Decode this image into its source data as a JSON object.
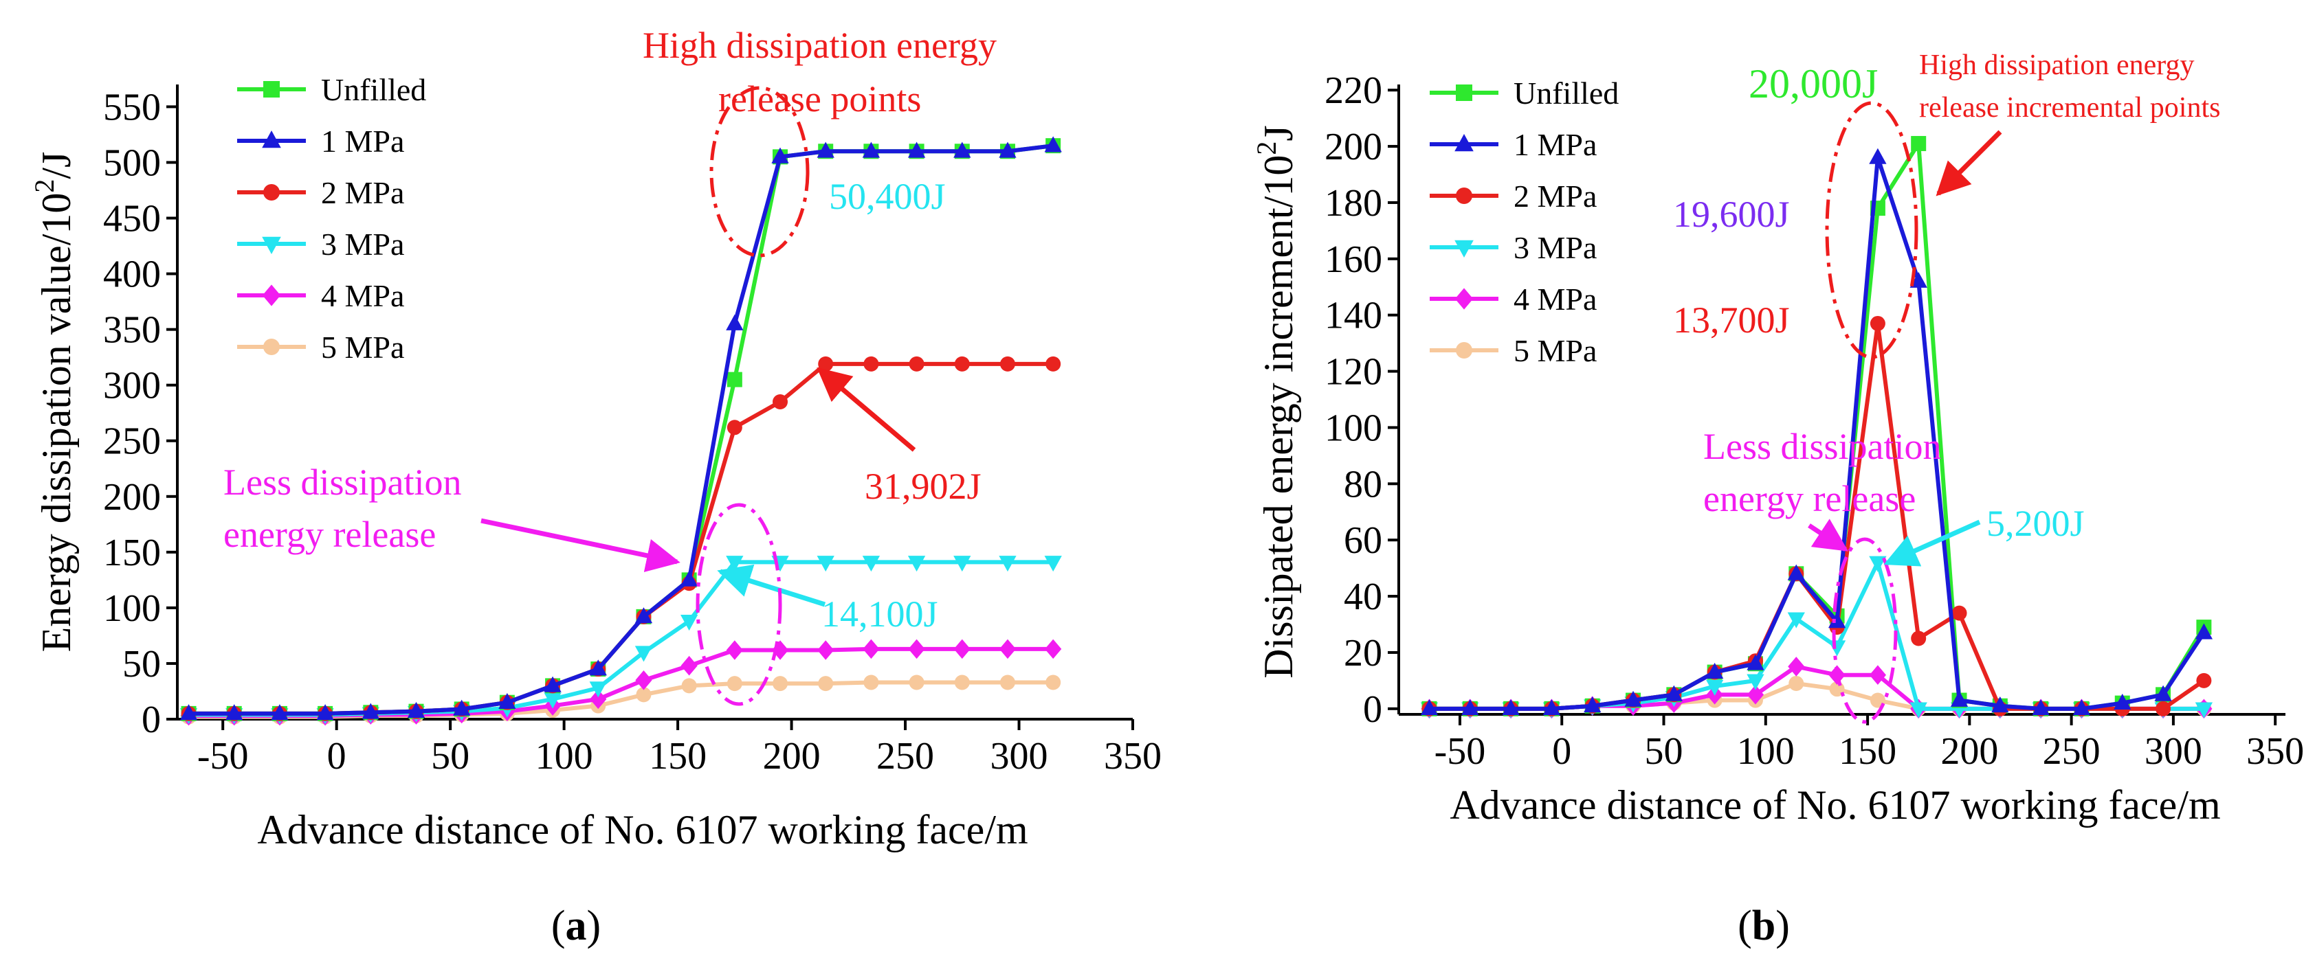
{
  "colors": {
    "Unfilled": "#2ee82e",
    "1 MPa": "#1a1ad9",
    "2 MPa": "#e8231f",
    "3 MPa": "#24e4f0",
    "4 MPa": "#f21cf0",
    "5 MPa": "#f7c89b",
    "annot_red": "#ee1c1c",
    "annot_magenta": "#f21cf0",
    "annot_cyan": "#24e4f0",
    "annot_green": "#2ee82e",
    "annot_purple": "#7b2cf0"
  },
  "chart_data": [
    {
      "type": "line",
      "panel_label": "(a)",
      "xlabel": "Advance distance of No. 6107 working face/m",
      "ylabel": "Energy dissipation value/10",
      "ylabel_sup": "2",
      "ylabel_unit": "/J",
      "xlim": [
        -70,
        350
      ],
      "ylim": [
        0,
        570
      ],
      "xticks": [
        -50,
        0,
        50,
        100,
        150,
        200,
        250,
        300,
        350
      ],
      "yticks": [
        0,
        50,
        100,
        150,
        200,
        250,
        300,
        350,
        400,
        450,
        500,
        550
      ],
      "legend": "top-left",
      "grid": false,
      "x": [
        -65,
        -45,
        -25,
        -5,
        15,
        35,
        55,
        75,
        95,
        115,
        135,
        155,
        175,
        195,
        215,
        235,
        255,
        275,
        295,
        315
      ],
      "series": [
        {
          "name": "Unfilled",
          "marker": "square",
          "values": [
            5,
            5,
            5,
            5,
            6,
            7,
            9,
            15,
            30,
            45,
            92,
            125,
            305,
            505,
            510,
            510,
            510,
            510,
            510,
            515
          ]
        },
        {
          "name": "1 MPa",
          "marker": "triangle-up",
          "values": [
            5,
            5,
            5,
            5,
            6,
            7,
            9,
            15,
            30,
            45,
            92,
            125,
            355,
            505,
            510,
            510,
            510,
            510,
            510,
            515
          ]
        },
        {
          "name": "2 MPa",
          "marker": "circle",
          "values": [
            5,
            5,
            5,
            5,
            6,
            7,
            9,
            15,
            30,
            45,
            92,
            122,
            262,
            285,
            319,
            319,
            319,
            319,
            319,
            319
          ]
        },
        {
          "name": "3 MPa",
          "marker": "triangle-down",
          "values": [
            4,
            4,
            4,
            4,
            5,
            6,
            7,
            10,
            18,
            28,
            60,
            88,
            141,
            141,
            141,
            141,
            141,
            141,
            141,
            141
          ]
        },
        {
          "name": "4 MPa",
          "marker": "diamond",
          "values": [
            3,
            3,
            3,
            3,
            4,
            4,
            5,
            7,
            12,
            18,
            35,
            48,
            62,
            62,
            62,
            63,
            63,
            63,
            63,
            63
          ]
        },
        {
          "name": "5 MPa",
          "marker": "circle",
          "values": [
            2,
            2,
            2,
            2,
            3,
            3,
            4,
            5,
            8,
            12,
            22,
            30,
            32,
            32,
            32,
            33,
            33,
            33,
            33,
            33
          ]
        }
      ],
      "annotations": {
        "high_title_line1": "High dissipation energy",
        "high_title_line2": "release points",
        "value_50400": "50,400J",
        "value_31902": "31,902J",
        "value_14100": "14,100J",
        "less_line1": "Less dissipation",
        "less_line2": "energy release"
      }
    },
    {
      "type": "line",
      "panel_label": "(b)",
      "xlabel": "Advance distance of No. 6107 working face/m",
      "ylabel": "Dissipated energy increment/10",
      "ylabel_sup": "2",
      "ylabel_unit": "J",
      "xlim": [
        -80,
        355
      ],
      "ylim": [
        -2,
        222
      ],
      "xticks": [
        -50,
        0,
        50,
        100,
        150,
        200,
        250,
        300,
        350
      ],
      "yticks": [
        0,
        20,
        40,
        60,
        80,
        100,
        120,
        140,
        160,
        180,
        200,
        220
      ],
      "legend": "top-left",
      "grid": false,
      "x": [
        -65,
        -45,
        -25,
        -5,
        15,
        35,
        55,
        75,
        95,
        115,
        135,
        155,
        175,
        195,
        215,
        235,
        255,
        275,
        295,
        315
      ],
      "series": [
        {
          "name": "Unfilled",
          "marker": "square",
          "values": [
            0,
            0,
            0,
            0,
            1,
            3,
            5,
            13,
            16,
            48,
            33,
            178,
            201,
            3,
            1,
            0,
            0,
            2,
            5,
            29
          ]
        },
        {
          "name": "1 MPa",
          "marker": "triangle-up",
          "values": [
            0,
            0,
            0,
            0,
            1,
            3,
            5,
            13,
            16,
            48,
            31,
            196,
            152,
            3,
            1,
            0,
            0,
            2,
            5,
            27
          ]
        },
        {
          "name": "2 MPa",
          "marker": "circle",
          "values": [
            0,
            0,
            0,
            0,
            1,
            3,
            5,
            13,
            17,
            48,
            29,
            137,
            25,
            34,
            0,
            0,
            0,
            0,
            0,
            10
          ]
        },
        {
          "name": "3 MPa",
          "marker": "triangle-down",
          "values": [
            0,
            0,
            0,
            0,
            1,
            2,
            4,
            8,
            10,
            32,
            22,
            52,
            0,
            0,
            0,
            0,
            0,
            0,
            0,
            0
          ]
        },
        {
          "name": "4 MPa",
          "marker": "diamond",
          "values": [
            0,
            0,
            0,
            0,
            1,
            1,
            2,
            5,
            5,
            15,
            12,
            12,
            0,
            0,
            0,
            0,
            0,
            0,
            0,
            0
          ]
        },
        {
          "name": "5 MPa",
          "marker": "circle",
          "values": [
            0,
            0,
            0,
            0,
            1,
            1,
            2,
            3,
            3,
            9,
            7,
            3,
            0,
            0,
            0,
            0,
            0,
            0,
            0,
            0
          ]
        }
      ],
      "annotations": {
        "value_20000": "20,000J",
        "high_title_line1": "High dissipation energy",
        "high_title_line2": "release incremental points",
        "value_19600": "19,600J",
        "value_13700": "13,700J",
        "less_line1": "Less dissipation",
        "less_line2": "energy release",
        "value_5200": "5,200J"
      }
    }
  ]
}
